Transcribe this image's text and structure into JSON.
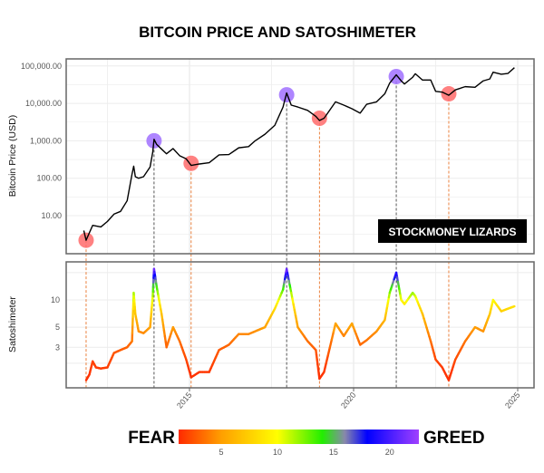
{
  "chart_data": [
    {
      "type": "line",
      "title": "BITCOIN PRICE AND SATOSHIMETER",
      "ylabel": "Bitcoin Price (USD)",
      "yscale": "log",
      "ylim": [
        1,
        150000
      ],
      "xlim": [
        2011.5,
        2025.3
      ],
      "yticks": [
        {
          "v": 10,
          "label": "10.00"
        },
        {
          "v": 100,
          "label": "100.00"
        },
        {
          "v": 1000,
          "label": "1,000.00"
        },
        {
          "v": 10000,
          "label": "10,000.00"
        },
        {
          "v": 100000,
          "label": "100,000.00"
        }
      ],
      "grid": true,
      "line_color": "#000000",
      "watermark": "STOCKMONEY LIZARDS",
      "series": [
        {
          "x": [
            2011.78,
            2011.85,
            2011.95,
            2012.05,
            2012.3,
            2012.5,
            2012.7,
            2012.9,
            2013.1,
            2013.25,
            2013.3,
            2013.35,
            2013.45,
            2013.6,
            2013.8,
            2013.88,
            2013.92,
            2014.0,
            2014.15,
            2014.3,
            2014.5,
            2014.7,
            2014.9,
            2015.05,
            2015.3,
            2015.6,
            2015.9,
            2016.2,
            2016.5,
            2016.8,
            2017.0,
            2017.3,
            2017.6,
            2017.85,
            2017.96,
            2018.1,
            2018.3,
            2018.6,
            2018.85,
            2018.96,
            2019.1,
            2019.45,
            2019.7,
            2019.95,
            2020.2,
            2020.4,
            2020.7,
            2020.95,
            2021.1,
            2021.3,
            2021.45,
            2021.55,
            2021.8,
            2021.88,
            2022.1,
            2022.35,
            2022.5,
            2022.7,
            2022.9,
            2023.1,
            2023.4,
            2023.7,
            2023.95,
            2024.15,
            2024.25,
            2024.5,
            2024.7,
            2024.9
          ],
          "y": [
            4,
            2.2,
            3.5,
            5.5,
            5,
            7,
            11,
            13,
            25,
            130,
            210,
            110,
            100,
            110,
            200,
            500,
            1100,
            800,
            600,
            450,
            620,
            400,
            330,
            220,
            240,
            260,
            420,
            430,
            650,
            700,
            1000,
            1500,
            2600,
            8000,
            19000,
            9000,
            8000,
            6500,
            4500,
            3500,
            4000,
            11000,
            9000,
            7200,
            5500,
            9500,
            11000,
            18000,
            35000,
            58000,
            40000,
            33000,
            50000,
            62000,
            42000,
            42000,
            21000,
            20000,
            16500,
            23000,
            28000,
            27000,
            40000,
            45000,
            68000,
            60000,
            63000,
            90000
          ]
        }
      ],
      "markers": [
        {
          "type": "greed",
          "x": 2013.92,
          "y": 1000,
          "color": "#a070ff"
        },
        {
          "type": "greed",
          "x": 2017.96,
          "y": 17000,
          "color": "#a070ff"
        },
        {
          "type": "greed",
          "x": 2021.3,
          "y": 52000,
          "color": "#a070ff"
        },
        {
          "type": "fear",
          "x": 2011.85,
          "y": 2.2,
          "color": "#ff6b6b"
        },
        {
          "type": "fear",
          "x": 2015.05,
          "y": 250,
          "color": "#ff6b6b"
        },
        {
          "type": "fear",
          "x": 2018.96,
          "y": 4000,
          "color": "#ff6b6b"
        },
        {
          "type": "fear",
          "x": 2022.9,
          "y": 18000,
          "color": "#ff6b6b"
        }
      ]
    },
    {
      "type": "line",
      "ylabel": "Satoshimeter",
      "yscale": "log",
      "ylim": [
        1.1,
        28
      ],
      "yticks": [
        {
          "v": 3,
          "label": "3"
        },
        {
          "v": 5,
          "label": "5"
        },
        {
          "v": 10,
          "label": "10"
        }
      ],
      "xticks": [
        {
          "v": 2015,
          "label": "2015"
        },
        {
          "v": 2020,
          "label": "2020"
        },
        {
          "v": 2025,
          "label": "2025"
        }
      ],
      "grid": true,
      "series": [
        {
          "x": [
            2011.85,
            2011.95,
            2012.05,
            2012.15,
            2012.3,
            2012.5,
            2012.7,
            2012.9,
            2013.1,
            2013.25,
            2013.3,
            2013.35,
            2013.45,
            2013.6,
            2013.8,
            2013.88,
            2013.92,
            2014.0,
            2014.15,
            2014.3,
            2014.5,
            2014.7,
            2014.9,
            2015.05,
            2015.3,
            2015.6,
            2015.9,
            2016.2,
            2016.5,
            2016.8,
            2017.0,
            2017.3,
            2017.6,
            2017.85,
            2017.96,
            2018.1,
            2018.3,
            2018.6,
            2018.85,
            2018.96,
            2019.1,
            2019.45,
            2019.7,
            2019.95,
            2020.2,
            2020.4,
            2020.7,
            2020.95,
            2021.1,
            2021.3,
            2021.45,
            2021.55,
            2021.8,
            2021.88,
            2022.1,
            2022.35,
            2022.5,
            2022.7,
            2022.9,
            2023.1,
            2023.4,
            2023.7,
            2023.95,
            2024.15,
            2024.25,
            2024.5,
            2024.7,
            2024.9
          ],
          "y": [
            1.3,
            1.5,
            2.1,
            1.8,
            1.75,
            1.8,
            2.6,
            2.8,
            3.0,
            3.5,
            12,
            7,
            4.5,
            4.3,
            5,
            11,
            22,
            14,
            7,
            3,
            5,
            3.5,
            2.2,
            1.4,
            1.6,
            1.6,
            2.8,
            3.2,
            4.2,
            4.2,
            4.5,
            5,
            8,
            13,
            22,
            12,
            5,
            3.5,
            2.8,
            1.35,
            1.6,
            5.5,
            4,
            5.5,
            3.2,
            3.6,
            4.5,
            6,
            12,
            20,
            10,
            9,
            12,
            11,
            7,
            3.5,
            2.2,
            1.8,
            1.3,
            2.2,
            3.5,
            5,
            4.5,
            7,
            10,
            7.5,
            8,
            8.5
          ]
        }
      ]
    },
    {
      "type": "colorbar",
      "left_label": "FEAR",
      "right_label": "GREED",
      "range": [
        1.2,
        22.6
      ],
      "ticks": [
        {
          "v": 5,
          "label": "5"
        },
        {
          "v": 10,
          "label": "10"
        },
        {
          "v": 15,
          "label": "15"
        },
        {
          "v": 20,
          "label": "20"
        }
      ],
      "stops": [
        {
          "v": 1.2,
          "color": "#ff2a00"
        },
        {
          "v": 5,
          "color": "#ff9f00"
        },
        {
          "v": 10,
          "color": "#ffff00"
        },
        {
          "v": 14,
          "color": "#22ee00"
        },
        {
          "v": 16,
          "color": "#8888aa"
        },
        {
          "v": 18,
          "color": "#0000ff"
        },
        {
          "v": 22.6,
          "color": "#a040ff"
        }
      ]
    }
  ]
}
